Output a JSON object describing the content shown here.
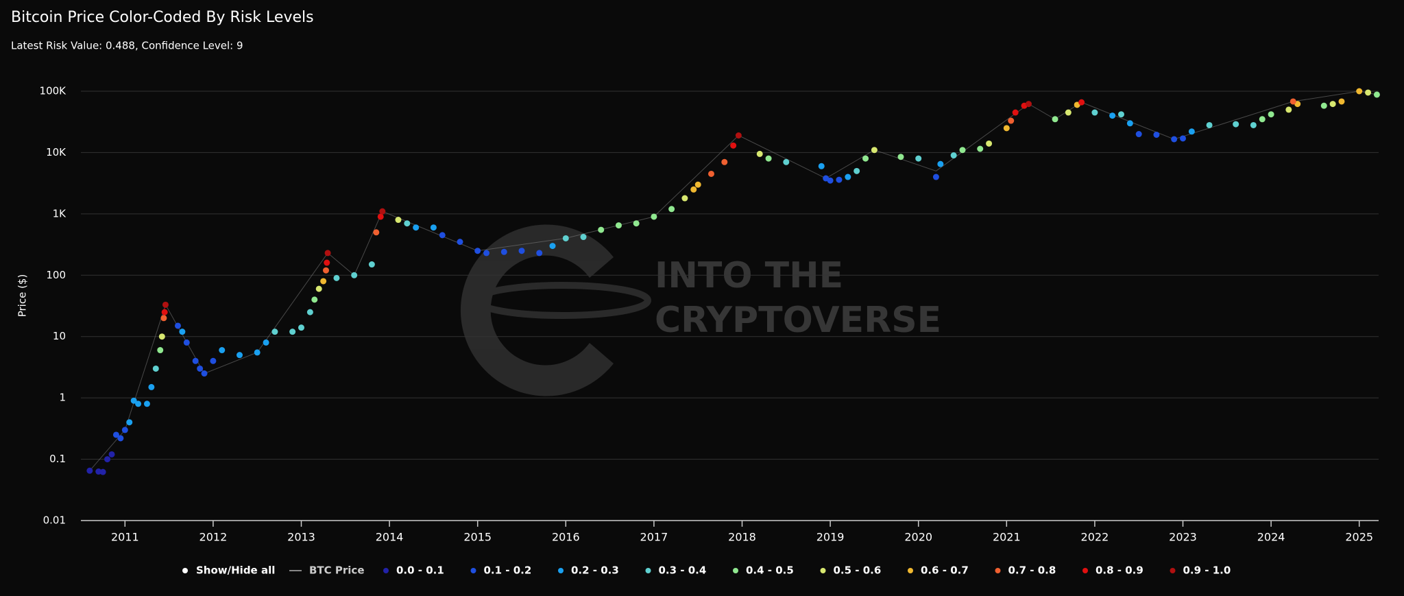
{
  "chart_data": {
    "type": "scatter",
    "title": "Bitcoin Price Color-Coded By Risk Levels",
    "subtitle": "Latest Risk Value: 0.488, Confidence Level: 9",
    "y_label": "Price ($)",
    "watermark": [
      "INTO THE",
      "CRYPTOVERSE"
    ],
    "legend_toggle": "Show/Hide all",
    "log_y": true,
    "grid": true,
    "xlim": [
      2010.5,
      2025.22
    ],
    "xticks": [
      2011,
      2012,
      2013,
      2014,
      2015,
      2016,
      2017,
      2018,
      2019,
      2020,
      2021,
      2022,
      2023,
      2024,
      2025
    ],
    "ylim": [
      0.01,
      100000
    ],
    "yticks": [
      0.01,
      0.1,
      1,
      10,
      100,
      {
        "value": 1000,
        "label": "1K"
      },
      {
        "value": 10000,
        "label": "10K"
      },
      {
        "value": 100000,
        "label": "100K"
      }
    ],
    "line_series": {
      "name": "BTC Price",
      "color": "#888888",
      "x": [
        2010.6,
        2011.0,
        2011.46,
        2011.9,
        2012.5,
        2013.3,
        2013.6,
        2013.92,
        2015.0,
        2016.0,
        2017.0,
        2017.96,
        2018.95,
        2019.5,
        2020.2,
        2021.25,
        2021.55,
        2021.85,
        2022.9,
        2024.25,
        2025.0,
        2025.2
      ],
      "values": [
        0.065,
        0.3,
        33,
        2.5,
        5.5,
        230,
        100,
        1100,
        250,
        400,
        900,
        19000,
        3800,
        11000,
        5000,
        62000,
        35000,
        66000,
        16500,
        68000,
        100000,
        88000
      ]
    },
    "series": [
      {
        "name": "0.0 - 0.1",
        "color": "#2222a8",
        "x": [
          2010.6,
          2010.7,
          2010.75,
          2010.8,
          2010.85
        ],
        "values": [
          0.065,
          0.063,
          0.062,
          0.1,
          0.12
        ]
      },
      {
        "name": "0.1 - 0.2",
        "color": "#1f4fe0",
        "x": [
          2010.9,
          2010.95,
          2011.0,
          2011.6,
          2011.7,
          2011.8,
          2011.85,
          2011.9,
          2012.0,
          2014.6,
          2014.8,
          2015.0,
          2015.1,
          2015.3,
          2015.5,
          2015.7,
          2018.95,
          2019.0,
          2019.1,
          2020.2,
          2022.5,
          2022.7,
          2022.9,
          2023.0
        ],
        "values": [
          0.25,
          0.22,
          0.3,
          15,
          8,
          4,
          3,
          2.5,
          4,
          450,
          350,
          250,
          230,
          240,
          250,
          230,
          3800,
          3500,
          3600,
          4000,
          20000,
          19500,
          16500,
          17000
        ]
      },
      {
        "name": "0.2 - 0.3",
        "color": "#1aa0f0",
        "x": [
          2011.05,
          2011.1,
          2011.15,
          2011.25,
          2011.3,
          2011.65,
          2012.1,
          2012.3,
          2012.5,
          2012.6,
          2014.3,
          2014.5,
          2015.85,
          2018.9,
          2019.2,
          2020.25,
          2022.2,
          2022.4,
          2023.1
        ],
        "values": [
          0.4,
          0.9,
          0.8,
          0.8,
          1.5,
          12,
          6,
          5,
          5.5,
          8,
          600,
          600,
          300,
          6000,
          4000,
          6500,
          40000,
          30000,
          22000
        ]
      },
      {
        "name": "0.3 - 0.4",
        "color": "#5fd0d0",
        "x": [
          2011.35,
          2012.7,
          2012.9,
          2013.0,
          2013.1,
          2013.4,
          2013.6,
          2013.8,
          2014.2,
          2016.0,
          2016.2,
          2018.5,
          2019.3,
          2020.0,
          2020.4,
          2022.0,
          2022.3,
          2023.3,
          2023.6,
          2023.8
        ],
        "values": [
          3,
          12,
          12,
          14,
          25,
          90,
          100,
          150,
          700,
          400,
          420,
          7000,
          5000,
          8000,
          9000,
          45000,
          42000,
          28000,
          29000,
          28000
        ]
      },
      {
        "name": "0.4 - 0.5",
        "color": "#90e890",
        "x": [
          2011.4,
          2013.15,
          2016.4,
          2016.6,
          2016.8,
          2017.0,
          2017.2,
          2018.3,
          2019.4,
          2019.8,
          2020.5,
          2020.7,
          2021.55,
          2023.9,
          2024.0,
          2024.6,
          2025.2
        ],
        "values": [
          6,
          40,
          550,
          650,
          700,
          900,
          1200,
          8000,
          8000,
          8500,
          11000,
          11500,
          35000,
          35000,
          42000,
          58000,
          88000
        ]
      },
      {
        "name": "0.5 - 0.6",
        "color": "#d8e870",
        "x": [
          2011.42,
          2013.2,
          2014.1,
          2017.35,
          2018.2,
          2019.5,
          2020.8,
          2021.7,
          2024.2,
          2024.7,
          2025.1
        ],
        "values": [
          10,
          60,
          800,
          1800,
          9500,
          11000,
          14000,
          45000,
          50000,
          62000,
          95000
        ]
      },
      {
        "name": "0.6 - 0.7",
        "color": "#f0b830",
        "x": [
          2013.25,
          2017.45,
          2017.5,
          2021.0,
          2021.8,
          2024.3,
          2024.8,
          2025.0
        ],
        "values": [
          80,
          2500,
          3000,
          25000,
          60000,
          62000,
          68000,
          100000
        ]
      },
      {
        "name": "0.7 - 0.8",
        "color": "#f06030",
        "x": [
          2011.44,
          2013.28,
          2013.85,
          2017.65,
          2017.8,
          2021.05,
          2024.25
        ],
        "values": [
          20,
          120,
          500,
          4500,
          7000,
          33000,
          68000
        ]
      },
      {
        "name": "0.8 - 0.9",
        "color": "#e01010",
        "x": [
          2011.45,
          2013.29,
          2013.9,
          2017.9,
          2021.1,
          2021.2,
          2021.85
        ],
        "values": [
          25,
          160,
          900,
          13000,
          45000,
          58000,
          66000
        ]
      },
      {
        "name": "0.9 - 1.0",
        "color": "#b01010",
        "x": [
          2011.46,
          2013.3,
          2013.92,
          2017.96,
          2021.25
        ],
        "values": [
          33,
          230,
          1100,
          19000,
          62000
        ]
      }
    ]
  }
}
